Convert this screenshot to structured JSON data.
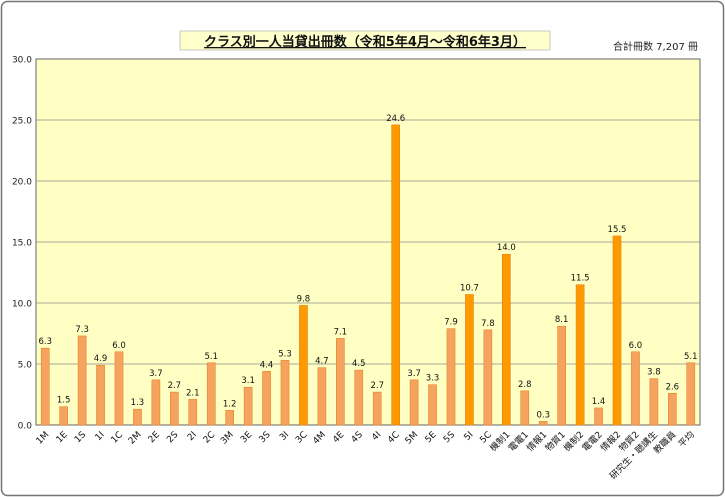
{
  "chart_data": {
    "type": "bar",
    "title": "クラス別一人当貸出冊数（令和5年4月～令和6年3月）",
    "subtitle": "合計冊数 7,207 冊",
    "xlabel": "",
    "ylabel": "",
    "ylim": [
      0,
      30
    ],
    "yticks": [
      "0.0",
      "5.0",
      "10.0",
      "15.0",
      "20.0",
      "25.0",
      "30.0"
    ],
    "grid": true,
    "categories": [
      "1M",
      "1E",
      "1S",
      "1I",
      "1C",
      "2M",
      "2E",
      "2S",
      "2I",
      "2C",
      "3M",
      "3E",
      "3S",
      "3I",
      "3C",
      "4M",
      "4E",
      "4S",
      "4I",
      "4C",
      "5M",
      "5E",
      "5S",
      "5I",
      "5C",
      "機制1",
      "電電1",
      "情報1",
      "物質1",
      "機制2",
      "電電2",
      "情報2",
      "物質2",
      "研究生・聴講生",
      "教職員",
      "平均"
    ],
    "values": [
      6.3,
      1.5,
      7.3,
      4.9,
      6.0,
      1.3,
      3.7,
      2.7,
      2.1,
      5.1,
      1.2,
      3.1,
      4.4,
      5.3,
      9.8,
      4.7,
      7.1,
      4.5,
      2.7,
      24.6,
      3.7,
      3.3,
      7.9,
      10.7,
      7.8,
      14.0,
      2.8,
      0.3,
      8.1,
      11.5,
      1.4,
      15.5,
      6.0,
      3.8,
      2.6,
      5.1
    ],
    "value_labels": [
      "6.3",
      "1.5",
      "7.3",
      "4.9",
      "6.0",
      "1.3",
      "3.7",
      "2.7",
      "2.1",
      "5.1",
      "1.2",
      "3.1",
      "4.4",
      "5.3",
      "9.8",
      "4.7",
      "7.1",
      "4.5",
      "2.7",
      "24.6",
      "3.7",
      "3.3",
      "7.9",
      "10.7",
      "7.8",
      "14.0",
      "2.8",
      "0.3",
      "8.1",
      "11.5",
      "1.4",
      "15.5",
      "6.0",
      "3.8",
      "2.6",
      "5.1"
    ],
    "highlight": [
      false,
      false,
      false,
      false,
      false,
      false,
      false,
      false,
      false,
      false,
      false,
      false,
      false,
      false,
      true,
      false,
      false,
      false,
      false,
      true,
      false,
      false,
      false,
      true,
      false,
      true,
      false,
      false,
      false,
      true,
      false,
      true,
      false,
      false,
      false,
      false
    ],
    "colors": {
      "bar": "#f5a35e",
      "bar_highlight": "#ff9900",
      "bar_edge": "#e07b18",
      "plot_bg": "#ffffc4",
      "grid": "#8c8c8c",
      "title_bg": "#ffffcc",
      "frame": "#777777"
    }
  }
}
